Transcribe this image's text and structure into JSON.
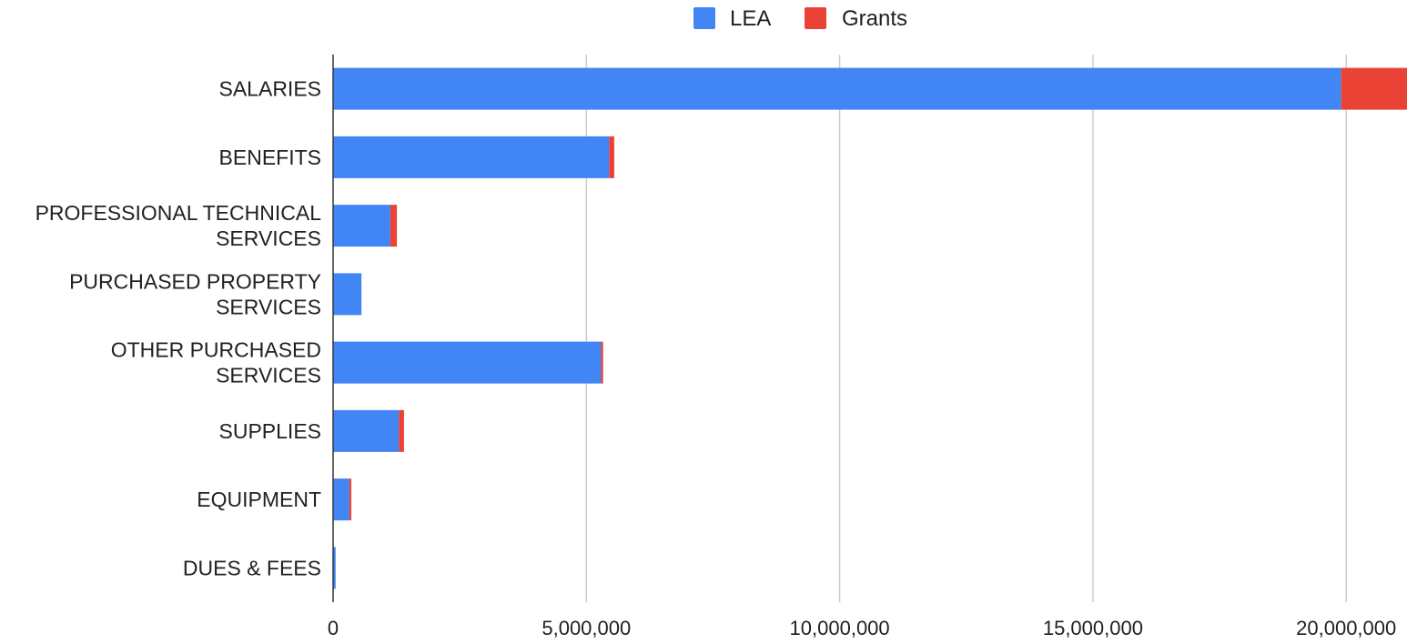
{
  "chart_data": {
    "type": "bar",
    "orientation": "horizontal",
    "stacked": true,
    "categories": [
      [
        "SALARIES"
      ],
      [
        "BENEFITS"
      ],
      [
        "PROFESSIONAL TECHNICAL",
        "SERVICES"
      ],
      [
        "PURCHASED PROPERTY",
        "SERVICES"
      ],
      [
        "OTHER PURCHASED",
        "SERVICES"
      ],
      [
        "SUPPLIES"
      ],
      [
        "EQUIPMENT"
      ],
      [
        "DUES & FEES"
      ]
    ],
    "series": [
      {
        "name": "LEA",
        "color": "#4285f4",
        "values": [
          19900000,
          5450000,
          1130000,
          560000,
          5290000,
          1300000,
          320000,
          50000
        ]
      },
      {
        "name": "Grants",
        "color": "#ea4335",
        "values": [
          1300000,
          100000,
          130000,
          0,
          40000,
          100000,
          40000,
          0
        ]
      }
    ],
    "x_ticks": [
      "0",
      "5,000,000",
      "10,000,000",
      "15,000,000",
      "20,000,000"
    ],
    "x_tick_values": [
      0,
      5000000,
      10000000,
      15000000,
      20000000
    ],
    "xlim": [
      0,
      21200000
    ],
    "grid": true,
    "legend_position": "top"
  }
}
